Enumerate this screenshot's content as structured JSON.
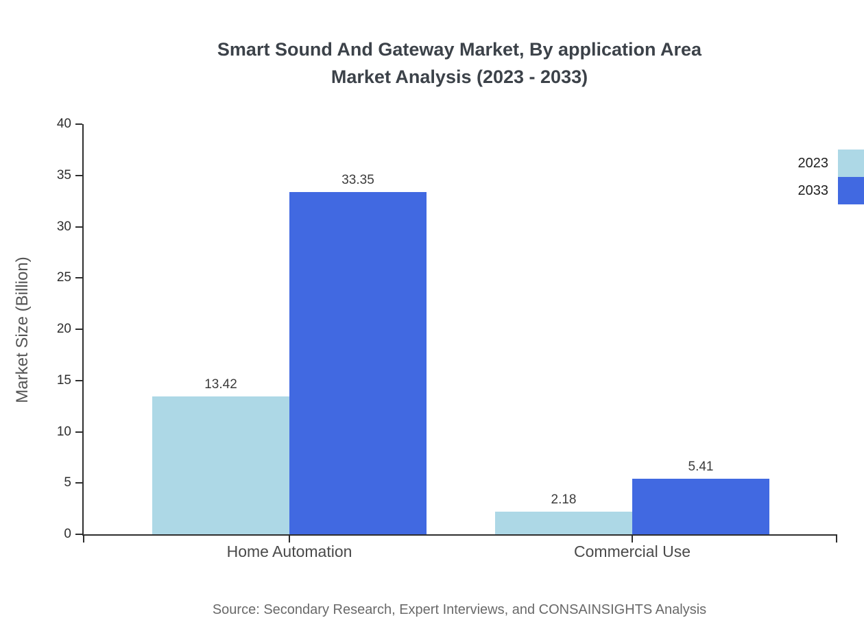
{
  "title_lines": [
    "Smart Sound And Gateway Market, By application Area",
    "Market Analysis (2023 - 2033)"
  ],
  "source_note": "Source: Secondary Research, Expert Interviews, and CONSAINSIGHTS Analysis",
  "colors": {
    "series_2023": "#ADD8E6",
    "series_2033": "#4169E1",
    "axis": "#2e2e2e",
    "title_text": "#3c4249",
    "muted_text": "#696969"
  },
  "chart_data": {
    "type": "bar",
    "title": "Smart Sound And Gateway Market, By application Area Market Analysis (2023 - 2033)",
    "categories": [
      "Home Automation",
      "Commercial Use"
    ],
    "series": [
      {
        "name": "2023",
        "color": "#ADD8E6",
        "values": [
          13.42,
          2.18
        ]
      },
      {
        "name": "2033",
        "color": "#4169E1",
        "values": [
          33.35,
          5.41
        ]
      }
    ],
    "xlabel": "",
    "ylabel": "Market Size (Billion)",
    "ylim": [
      0,
      40
    ],
    "ytick_step": 5,
    "yticks": [
      0,
      5,
      10,
      15,
      20,
      25,
      30,
      35,
      40
    ],
    "grid": false,
    "legend_position": "top-right",
    "value_labels": true
  }
}
